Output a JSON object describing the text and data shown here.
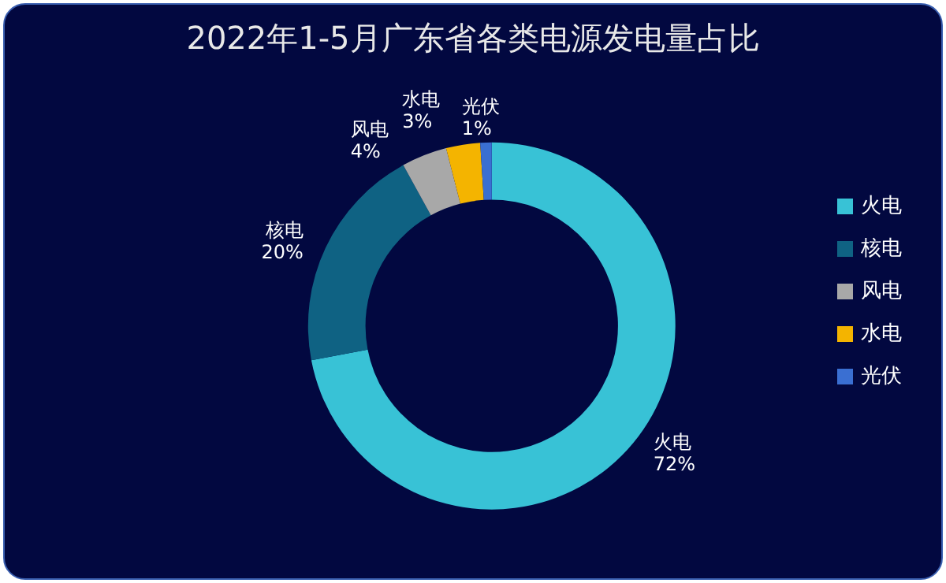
{
  "chart_data": {
    "type": "donut",
    "title": "2022年1-5月广东省各类电源发电量占比",
    "categories": [
      "火电",
      "核电",
      "风电",
      "水电",
      "光伏"
    ],
    "values": [
      72,
      20,
      4,
      3,
      1
    ],
    "value_labels": [
      "72%",
      "20%",
      "4%",
      "3%",
      "1%"
    ],
    "colors": [
      "#38c2d6",
      "#0f6283",
      "#a8a8a8",
      "#f4b400",
      "#3a6fd2"
    ],
    "legend": "right"
  }
}
